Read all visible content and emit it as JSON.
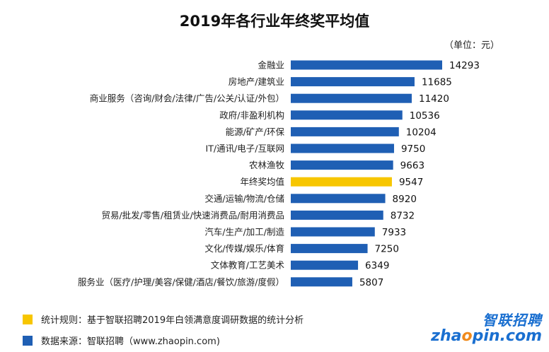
{
  "chart_data": {
    "type": "bar",
    "orientation": "horizontal",
    "title": "2019年各行业年终奖平均值",
    "unit_label": "（单位：元）",
    "categories": [
      "金融业",
      "房地产/建筑业",
      "商业服务（咨询/财会/法律/广告/公关/认证/外包）",
      "政府/非盈利机构",
      "能源/矿产/环保",
      "IT/通讯/电子/互联网",
      "农林渔牧",
      "年终奖均值",
      "交通/运输/物流/仓储",
      "贸易/批发/零售/租赁业/快速消费品/耐用消费品",
      "汽车/生产/加工/制造",
      "文化/传媒/娱乐/体育",
      "文体教育/工艺美术",
      "服务业（医疗/护理/美容/保健/酒店/餐饮/旅游/度假）"
    ],
    "values": [
      14293,
      11685,
      11420,
      10536,
      10204,
      9750,
      9663,
      9547,
      8920,
      8732,
      7933,
      7250,
      6349,
      5807
    ],
    "highlight_category": "年终奖均值",
    "colors": {
      "default": "#1f5fb4",
      "highlight": "#f7c600"
    },
    "xlim": [
      0,
      14293
    ],
    "grid": false
  },
  "legend": {
    "rule_text": "统计规则：基于智联招聘2019年白领满意度调研数据的统计分析",
    "rule_color": "#f7c600",
    "source_text": "数据来源：智联招聘（www.zhaopin.com)",
    "source_color": "#1f5fb4"
  },
  "logo": {
    "name_cn": "智联招聘",
    "domain_prefix": "zha",
    "domain_o": "o",
    "domain_suffix": "pin.com"
  }
}
